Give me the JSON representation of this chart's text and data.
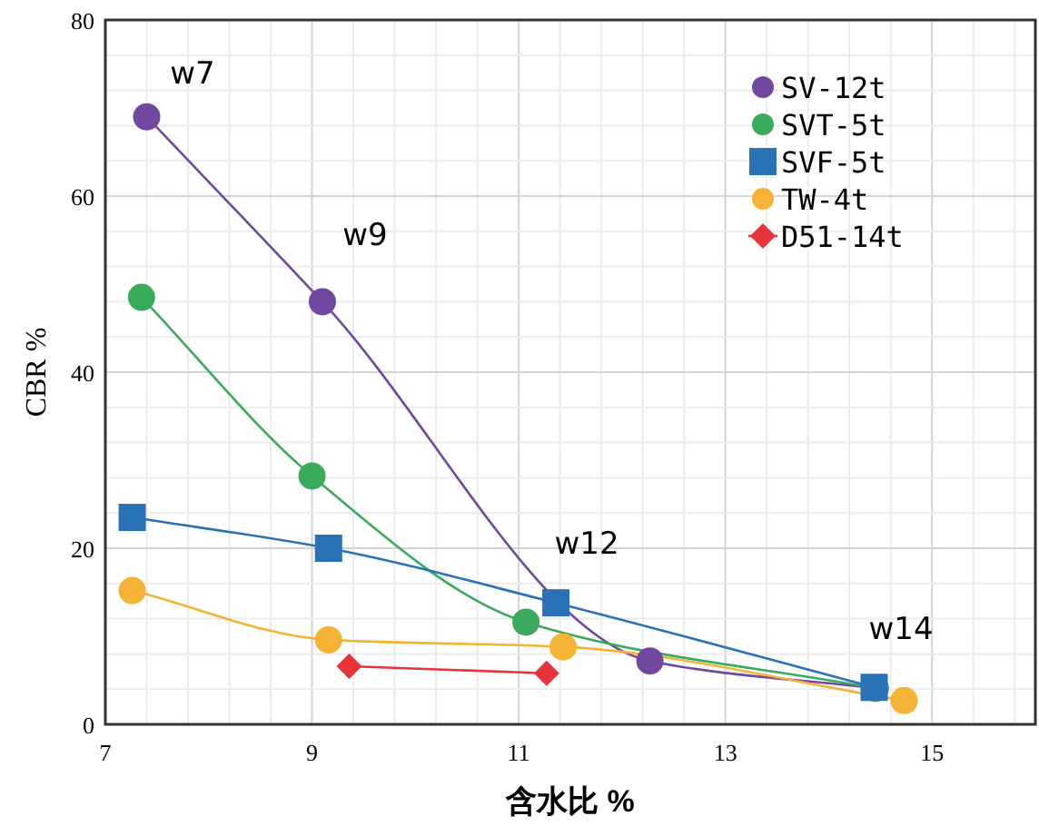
{
  "chart_data": {
    "type": "line",
    "xlabel": "含水比 %",
    "ylabel": "CBR %",
    "xlim": [
      7,
      16
    ],
    "xticks": [
      7,
      9,
      11,
      13,
      15
    ],
    "ylim": [
      0,
      80
    ],
    "yticks": [
      0,
      20,
      40,
      60,
      80
    ],
    "grid": true,
    "legend": "top right",
    "marker": "circle",
    "line_style": "solid",
    "series": [
      {
        "name": "SV-12t",
        "color": "#7048a0",
        "x": [
          7.4,
          9.1,
          12.27,
          14.45
        ],
        "values": [
          69,
          48,
          7.2,
          4.1
        ]
      },
      {
        "name": "SVT-5t",
        "color": "#3aaa5c",
        "x": [
          7.35,
          9.0,
          11.07,
          14.45
        ],
        "values": [
          48.5,
          28.2,
          11.6,
          4.1
        ]
      },
      {
        "name": "SVF-5t",
        "color": "#2a72b8",
        "marker": "square",
        "x": [
          7.26,
          9.16,
          11.36,
          14.44
        ],
        "values": [
          23.5,
          20,
          13.8,
          4.2
        ]
      },
      {
        "name": "TW-4t",
        "color": "#f5b335",
        "x": [
          7.26,
          9.16,
          11.43,
          14.73
        ],
        "values": [
          15.2,
          9.6,
          8.8,
          2.7
        ]
      },
      {
        "name": "D51-14t",
        "color": "#e8333a",
        "marker": "diamond",
        "x": [
          9.36,
          11.27
        ],
        "values": [
          6.6,
          5.8
        ]
      }
    ],
    "annotations": [
      "w7",
      "w9",
      "w12",
      "w14"
    ]
  }
}
